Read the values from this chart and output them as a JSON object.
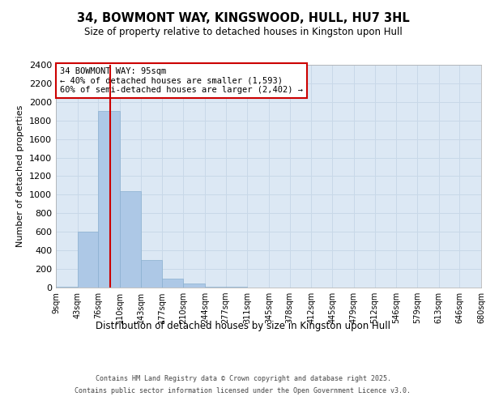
{
  "title": "34, BOWMONT WAY, KINGSWOOD, HULL, HU7 3HL",
  "subtitle": "Size of property relative to detached houses in Kingston upon Hull",
  "xlabel": "Distribution of detached houses by size in Kingston upon Hull",
  "ylabel": "Number of detached properties",
  "bin_edges": [
    9,
    43,
    76,
    110,
    143,
    177,
    210,
    244,
    277,
    311,
    345,
    378,
    412,
    445,
    479,
    512,
    546,
    579,
    613,
    646,
    680
  ],
  "bar_heights": [
    10,
    600,
    1900,
    1040,
    295,
    100,
    45,
    10,
    5,
    3,
    2,
    1,
    1,
    1,
    0,
    0,
    0,
    0,
    0,
    0
  ],
  "bar_color": "#adc8e6",
  "bar_edgecolor": "#8ab0d0",
  "vline_x": 95,
  "vline_color": "#cc0000",
  "annotation_text": "34 BOWMONT WAY: 95sqm\n← 40% of detached houses are smaller (1,593)\n60% of semi-detached houses are larger (2,402) →",
  "annotation_box_edgecolor": "#cc0000",
  "annotation_box_facecolor": "#ffffff",
  "ylim": [
    0,
    2400
  ],
  "yticks": [
    0,
    200,
    400,
    600,
    800,
    1000,
    1200,
    1400,
    1600,
    1800,
    2000,
    2200,
    2400
  ],
  "grid_color": "#c8d8e8",
  "axes_background": "#dce8f4",
  "fig_background": "#ffffff",
  "footer_line1": "Contains HM Land Registry data © Crown copyright and database right 2025.",
  "footer_line2": "Contains public sector information licensed under the Open Government Licence v3.0.",
  "tick_labels": [
    "9sqm",
    "43sqm",
    "76sqm",
    "110sqm",
    "143sqm",
    "177sqm",
    "210sqm",
    "244sqm",
    "277sqm",
    "311sqm",
    "345sqm",
    "378sqm",
    "412sqm",
    "445sqm",
    "479sqm",
    "512sqm",
    "546sqm",
    "579sqm",
    "613sqm",
    "646sqm",
    "680sqm"
  ]
}
